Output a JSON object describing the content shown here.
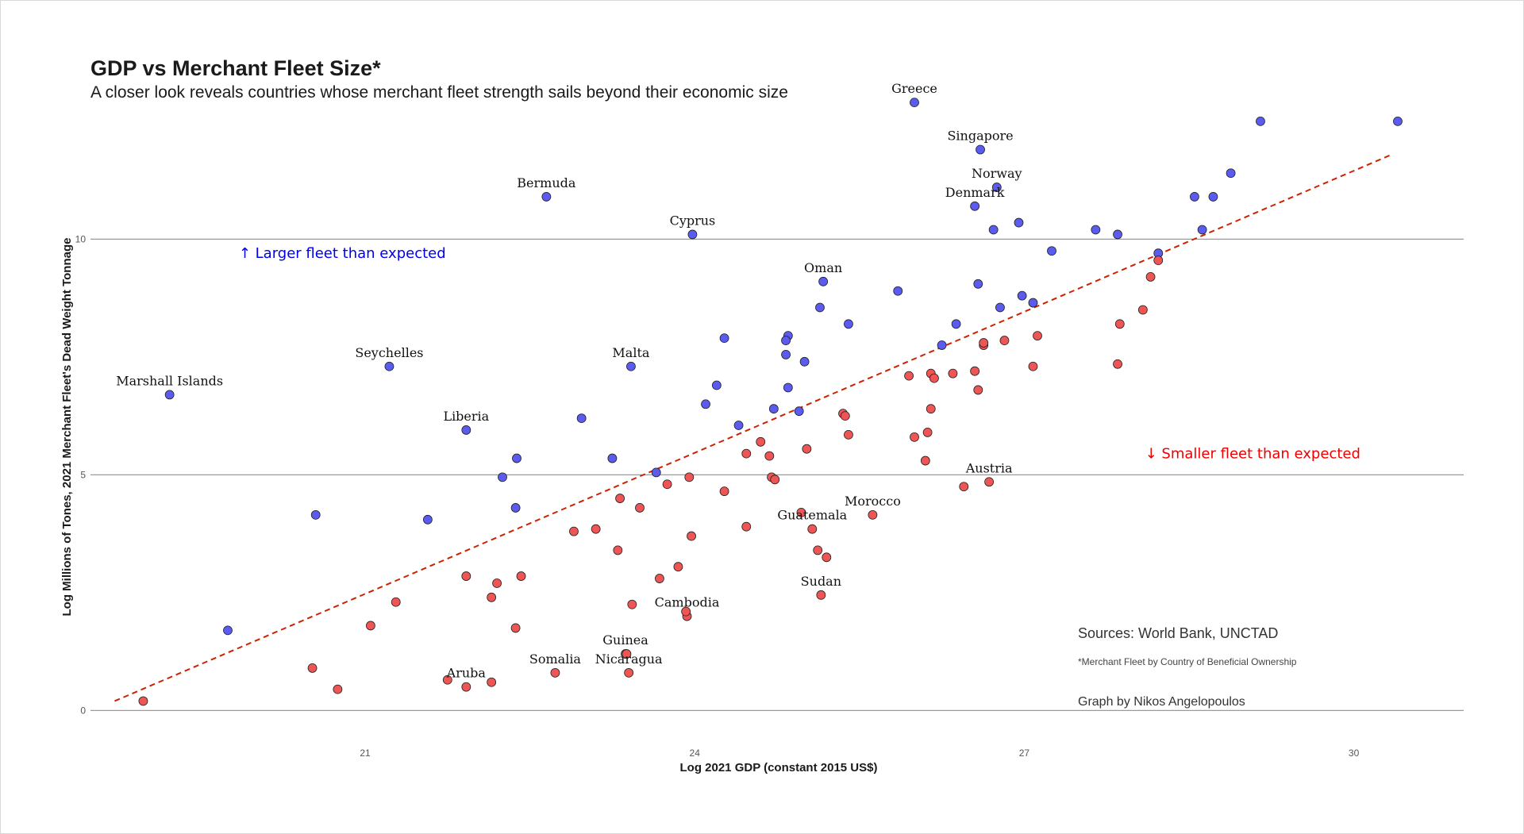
{
  "chart_data": {
    "type": "scatter",
    "title": "GDP vs Merchant Fleet Size*",
    "subtitle": "A closer look reveals countries whose merchant fleet strength sails beyond their economic size",
    "xlabel": "Log 2021 GDP (constant 2015 US$)",
    "ylabel": "Log Millions of Tones, 2021  Merchant Fleet's Dead Weight Tonnage",
    "xlim": [
      18.5,
      31.0
    ],
    "ylim": [
      -0.6,
      12.7
    ],
    "x_ticks": [
      21,
      24,
      27,
      30
    ],
    "y_ticks": [
      0,
      5,
      10
    ],
    "grid": "horizontal major lines",
    "trend_line": {
      "style": "dashed",
      "color": "#cc2200",
      "x": [
        18.72,
        30.35
      ],
      "y": [
        0.2,
        11.8
      ]
    },
    "annotations": [
      {
        "text": "↑ Larger fleet than expected",
        "x": 19.85,
        "y": 9.6,
        "color": "#0000ee"
      },
      {
        "text": "↓ Smaller fleet than expected",
        "x": 28.1,
        "y": 5.35,
        "color": "#ee0000"
      }
    ],
    "colors": {
      "above": "#5b5bf0",
      "below": "#ee5555",
      "outline": "#222222"
    },
    "series": [
      {
        "name": "Larger fleet than expected",
        "color": "#5b5bf0",
        "points": [
          {
            "x": 26.0,
            "y": 12.9,
            "label": "Greece"
          },
          {
            "x": 26.6,
            "y": 11.9,
            "label": "Singapore"
          },
          {
            "x": 26.75,
            "y": 11.1,
            "label": "Norway"
          },
          {
            "x": 26.55,
            "y": 10.7,
            "label": "Denmark"
          },
          {
            "x": 22.65,
            "y": 10.9,
            "label": "Bermuda"
          },
          {
            "x": 23.98,
            "y": 10.1,
            "label": "Cyprus"
          },
          {
            "x": 25.17,
            "y": 9.1,
            "label": "Oman"
          },
          {
            "x": 23.42,
            "y": 7.3,
            "label": "Malta"
          },
          {
            "x": 21.22,
            "y": 7.3,
            "label": "Seychelles"
          },
          {
            "x": 19.22,
            "y": 6.7,
            "label": "Marshall Islands"
          },
          {
            "x": 21.92,
            "y": 5.95,
            "label": "Liberia"
          },
          {
            "x": 29.15,
            "y": 12.5,
            "label": ""
          },
          {
            "x": 30.4,
            "y": 12.5,
            "label": ""
          },
          {
            "x": 28.88,
            "y": 11.4,
            "label": ""
          },
          {
            "x": 28.55,
            "y": 10.9,
            "label": ""
          },
          {
            "x": 28.72,
            "y": 10.9,
            "label": ""
          },
          {
            "x": 28.62,
            "y": 10.2,
            "label": ""
          },
          {
            "x": 28.22,
            "y": 9.7,
            "label": ""
          },
          {
            "x": 27.85,
            "y": 10.1,
            "label": ""
          },
          {
            "x": 27.65,
            "y": 10.2,
            "label": ""
          },
          {
            "x": 26.95,
            "y": 10.35,
            "label": ""
          },
          {
            "x": 26.72,
            "y": 10.2,
            "label": ""
          },
          {
            "x": 27.25,
            "y": 9.75,
            "label": ""
          },
          {
            "x": 26.58,
            "y": 9.05,
            "label": ""
          },
          {
            "x": 26.98,
            "y": 8.8,
            "label": ""
          },
          {
            "x": 27.08,
            "y": 8.65,
            "label": ""
          },
          {
            "x": 26.78,
            "y": 8.55,
            "label": ""
          },
          {
            "x": 26.38,
            "y": 8.2,
            "label": ""
          },
          {
            "x": 26.25,
            "y": 7.75,
            "label": ""
          },
          {
            "x": 25.85,
            "y": 8.9,
            "label": ""
          },
          {
            "x": 25.14,
            "y": 8.55,
            "label": ""
          },
          {
            "x": 25.4,
            "y": 8.2,
            "label": ""
          },
          {
            "x": 24.85,
            "y": 7.95,
            "label": ""
          },
          {
            "x": 24.83,
            "y": 7.85,
            "label": ""
          },
          {
            "x": 24.83,
            "y": 7.55,
            "label": ""
          },
          {
            "x": 25.0,
            "y": 7.4,
            "label": ""
          },
          {
            "x": 24.27,
            "y": 7.9,
            "label": ""
          },
          {
            "x": 24.2,
            "y": 6.9,
            "label": ""
          },
          {
            "x": 24.85,
            "y": 6.85,
            "label": ""
          },
          {
            "x": 24.1,
            "y": 6.5,
            "label": ""
          },
          {
            "x": 24.72,
            "y": 6.4,
            "label": ""
          },
          {
            "x": 24.95,
            "y": 6.35,
            "label": ""
          },
          {
            "x": 24.4,
            "y": 6.05,
            "label": ""
          },
          {
            "x": 22.97,
            "y": 6.2,
            "label": ""
          },
          {
            "x": 23.25,
            "y": 5.35,
            "label": ""
          },
          {
            "x": 23.65,
            "y": 5.05,
            "label": ""
          },
          {
            "x": 22.38,
            "y": 5.35,
            "label": ""
          },
          {
            "x": 22.25,
            "y": 4.95,
            "label": ""
          },
          {
            "x": 22.37,
            "y": 4.3,
            "label": ""
          },
          {
            "x": 20.55,
            "y": 4.15,
            "label": ""
          },
          {
            "x": 21.57,
            "y": 4.05,
            "label": ""
          },
          {
            "x": 19.75,
            "y": 1.7,
            "label": ""
          }
        ]
      },
      {
        "name": "Smaller fleet than expected",
        "color": "#ee5555",
        "points": [
          {
            "x": 26.68,
            "y": 4.85,
            "label": "Austria"
          },
          {
            "x": 25.62,
            "y": 4.15,
            "label": "Morocco"
          },
          {
            "x": 25.07,
            "y": 3.85,
            "label": "Guatemala"
          },
          {
            "x": 25.15,
            "y": 2.45,
            "label": "Sudan"
          },
          {
            "x": 23.93,
            "y": 2.0,
            "label": "Cambodia"
          },
          {
            "x": 23.37,
            "y": 1.2,
            "label": "Guinea"
          },
          {
            "x": 23.4,
            "y": 0.8,
            "label": "Nicaragua"
          },
          {
            "x": 22.73,
            "y": 0.8,
            "label": "Somalia"
          },
          {
            "x": 21.92,
            "y": 0.5,
            "label": "Aruba"
          },
          {
            "x": 18.98,
            "y": 0.2,
            "label": ""
          },
          {
            "x": 20.52,
            "y": 0.9,
            "label": ""
          },
          {
            "x": 20.75,
            "y": 0.45,
            "label": ""
          },
          {
            "x": 21.05,
            "y": 1.8,
            "label": ""
          },
          {
            "x": 21.28,
            "y": 2.3,
            "label": ""
          },
          {
            "x": 21.75,
            "y": 0.65,
            "label": ""
          },
          {
            "x": 21.92,
            "y": 2.85,
            "label": ""
          },
          {
            "x": 22.15,
            "y": 0.6,
            "label": ""
          },
          {
            "x": 22.15,
            "y": 2.4,
            "label": ""
          },
          {
            "x": 22.2,
            "y": 2.7,
            "label": ""
          },
          {
            "x": 22.37,
            "y": 1.75,
            "label": ""
          },
          {
            "x": 22.42,
            "y": 2.85,
            "label": ""
          },
          {
            "x": 22.9,
            "y": 3.8,
            "label": ""
          },
          {
            "x": 23.1,
            "y": 3.85,
            "label": ""
          },
          {
            "x": 23.3,
            "y": 3.4,
            "label": ""
          },
          {
            "x": 23.32,
            "y": 4.5,
            "label": ""
          },
          {
            "x": 23.43,
            "y": 2.25,
            "label": ""
          },
          {
            "x": 23.5,
            "y": 4.3,
            "label": ""
          },
          {
            "x": 23.38,
            "y": 1.2,
            "label": ""
          },
          {
            "x": 23.68,
            "y": 2.8,
            "label": ""
          },
          {
            "x": 23.75,
            "y": 4.8,
            "label": ""
          },
          {
            "x": 23.85,
            "y": 3.05,
            "label": ""
          },
          {
            "x": 23.95,
            "y": 4.95,
            "label": ""
          },
          {
            "x": 23.97,
            "y": 3.7,
            "label": ""
          },
          {
            "x": 23.92,
            "y": 2.1,
            "label": ""
          },
          {
            "x": 24.27,
            "y": 4.65,
            "label": ""
          },
          {
            "x": 24.47,
            "y": 3.9,
            "label": ""
          },
          {
            "x": 24.47,
            "y": 5.45,
            "label": ""
          },
          {
            "x": 24.6,
            "y": 5.7,
            "label": ""
          },
          {
            "x": 24.68,
            "y": 5.4,
            "label": ""
          },
          {
            "x": 24.7,
            "y": 4.95,
            "label": ""
          },
          {
            "x": 24.73,
            "y": 4.9,
            "label": ""
          },
          {
            "x": 24.97,
            "y": 4.2,
            "label": ""
          },
          {
            "x": 25.02,
            "y": 5.55,
            "label": ""
          },
          {
            "x": 25.12,
            "y": 3.4,
            "label": ""
          },
          {
            "x": 25.2,
            "y": 3.25,
            "label": ""
          },
          {
            "x": 25.35,
            "y": 6.3,
            "label": ""
          },
          {
            "x": 25.37,
            "y": 6.25,
            "label": ""
          },
          {
            "x": 25.4,
            "y": 5.85,
            "label": ""
          },
          {
            "x": 25.95,
            "y": 7.1,
            "label": ""
          },
          {
            "x": 26.0,
            "y": 5.8,
            "label": ""
          },
          {
            "x": 26.1,
            "y": 5.3,
            "label": ""
          },
          {
            "x": 26.12,
            "y": 5.9,
            "label": ""
          },
          {
            "x": 26.15,
            "y": 6.4,
            "label": ""
          },
          {
            "x": 26.15,
            "y": 7.15,
            "label": ""
          },
          {
            "x": 26.18,
            "y": 7.05,
            "label": ""
          },
          {
            "x": 26.35,
            "y": 7.15,
            "label": ""
          },
          {
            "x": 26.45,
            "y": 4.75,
            "label": ""
          },
          {
            "x": 26.55,
            "y": 7.2,
            "label": ""
          },
          {
            "x": 26.58,
            "y": 6.8,
            "label": ""
          },
          {
            "x": 26.63,
            "y": 7.75,
            "label": ""
          },
          {
            "x": 26.63,
            "y": 7.8,
            "label": ""
          },
          {
            "x": 26.82,
            "y": 7.85,
            "label": ""
          },
          {
            "x": 27.08,
            "y": 7.3,
            "label": ""
          },
          {
            "x": 27.12,
            "y": 7.95,
            "label": ""
          },
          {
            "x": 27.85,
            "y": 7.35,
            "label": ""
          },
          {
            "x": 27.87,
            "y": 8.2,
            "label": ""
          },
          {
            "x": 28.08,
            "y": 8.5,
            "label": ""
          },
          {
            "x": 28.15,
            "y": 9.2,
            "label": ""
          },
          {
            "x": 28.22,
            "y": 9.55,
            "label": ""
          }
        ]
      }
    ]
  },
  "footer": {
    "sources": "Sources: World Bank, UNCTAD",
    "footnote": "*Merchant Fleet by Country of Beneficial Ownership",
    "credit": "Graph by Nikos Angelopoulos"
  }
}
